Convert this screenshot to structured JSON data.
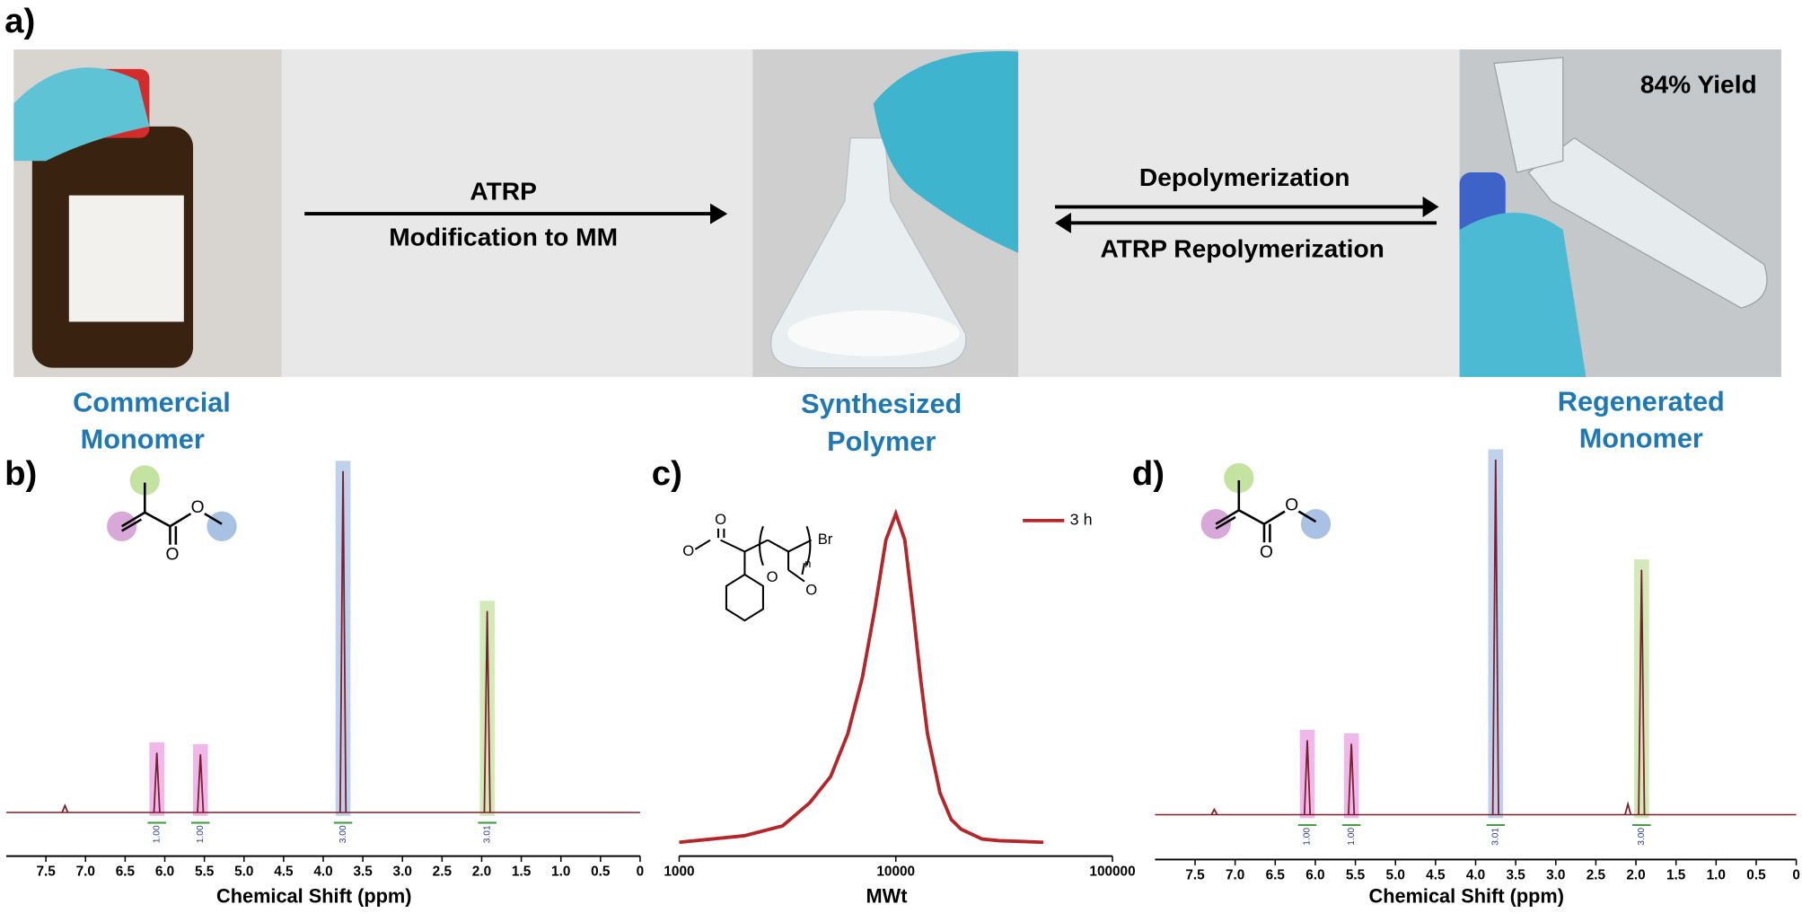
{
  "panel_a": {
    "label": "a)",
    "arrow_1": [
      "ATRP",
      "Modification to MM"
    ],
    "arrow_2": [
      "Depolymerization",
      "ATRP Repolymerization"
    ],
    "yield": "84% Yield",
    "captions": [
      [
        "Commercial",
        "Monomer"
      ],
      [
        "Synthesized",
        "Polymer"
      ],
      [
        "Regenerated",
        "Monomer"
      ]
    ]
  },
  "chart_data": [
    {
      "type": "nmr",
      "panel_label": "b)",
      "xlabel": "Chemical Shift (ppm)",
      "xlim": [
        8,
        0
      ],
      "xticks": [
        7.5,
        {
          "value": 7,
          "label": "7.0"
        },
        6.5,
        {
          "value": 6,
          "label": "6.0"
        },
        5.5,
        {
          "value": 5,
          "label": "5.0"
        },
        4.5,
        {
          "value": 4,
          "label": "4.0"
        },
        3.5,
        {
          "value": 3,
          "label": "3.0"
        },
        2.5,
        {
          "value": 2,
          "label": "2.0"
        },
        1.5,
        {
          "value": 1,
          "label": "1.0"
        },
        0.5,
        0
      ],
      "ylim": [
        0,
        1
      ],
      "color": "#7b1f2c",
      "x": [
        7.26,
        6.1,
        5.55,
        3.75,
        1.93
      ],
      "values": [
        0.02,
        0.175,
        0.17,
        1,
        0.59
      ],
      "integrals": [
        null,
        {
          "value": 1,
          "label": "1.00"
        },
        {
          "value": 1,
          "label": "1.00"
        },
        {
          "value": 3,
          "label": "3.00"
        },
        {
          "value": 3.01,
          "label": "3.01"
        }
      ],
      "highlight_colors": [
        null,
        "#e9a0e4",
        "#e9a0e4",
        "#a9c2e4",
        "#c4e3a0"
      ],
      "structure_atoms": [
        "O",
        "O"
      ]
    },
    {
      "type": "line",
      "panel_label": "c)",
      "xlabel": "MWt",
      "log_x": true,
      "xlim": [
        1000,
        100000
      ],
      "xticks": [
        1000,
        10000,
        100000
      ],
      "ylim": [
        0,
        1
      ],
      "x": [
        1000,
        2000,
        3000,
        4000,
        5000,
        6000,
        7000,
        8000,
        9000,
        10000,
        11000,
        12000,
        13000,
        14000,
        16000,
        18000,
        20000,
        25000,
        30000,
        48000
      ],
      "series": [
        {
          "name": "3 h",
          "color": "#b5262b",
          "values": [
            0,
            0.02,
            0.05,
            0.12,
            0.2,
            0.33,
            0.5,
            0.71,
            0.92,
            1,
            0.92,
            0.71,
            0.5,
            0.33,
            0.15,
            0.07,
            0.04,
            0.01,
            0.005,
            0
          ]
        }
      ],
      "structure_atoms": [
        "O",
        "O",
        "O",
        "O",
        "Br",
        "n"
      ]
    },
    {
      "type": "nmr",
      "panel_label": "d)",
      "xlabel": "Chemical Shift (ppm)",
      "xlim": [
        8,
        0
      ],
      "xticks": [
        7.5,
        {
          "value": 7,
          "label": "7.0"
        },
        6.5,
        {
          "value": 6,
          "label": "6.0"
        },
        5.5,
        {
          "value": 5,
          "label": "5.0"
        },
        4.5,
        {
          "value": 4,
          "label": "4.0"
        },
        3.5,
        {
          "value": 3,
          "label": "3.0"
        },
        2.5,
        {
          "value": 2,
          "label": "2.0"
        },
        1.5,
        {
          "value": 1,
          "label": "1.0"
        },
        0.5,
        0
      ],
      "ylim": [
        0,
        1
      ],
      "color": "#7b1f2c",
      "x": [
        7.26,
        6.1,
        5.55,
        3.75,
        2.1,
        1.93
      ],
      "values": [
        0.015,
        0.21,
        0.2,
        1,
        0.03,
        0.69
      ],
      "integrals": [
        null,
        {
          "value": 1,
          "label": "1.00"
        },
        {
          "value": 1,
          "label": "1.00"
        },
        {
          "value": 3.01,
          "label": "3.01"
        },
        null,
        {
          "value": 3,
          "label": "3.00"
        }
      ],
      "highlight_colors": [
        null,
        "#e9a0e4",
        "#e9a0e4",
        "#a9c2e4",
        null,
        "#c4e3a0"
      ],
      "structure_atoms": [
        "O",
        "O"
      ]
    }
  ]
}
